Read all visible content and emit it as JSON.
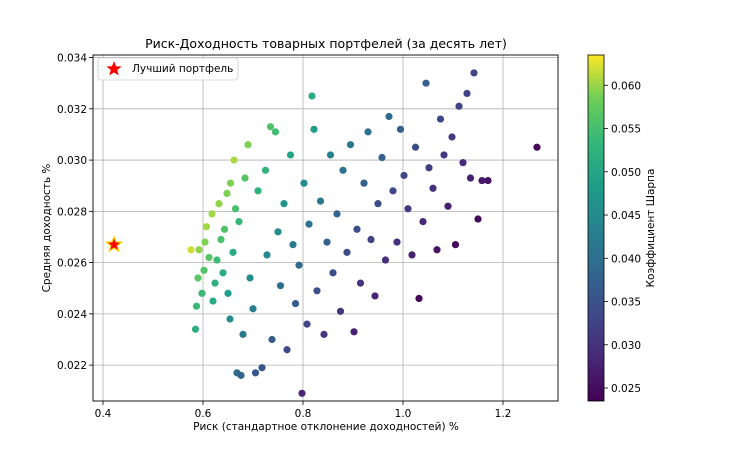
{
  "chart_data": {
    "type": "scatter",
    "title": "Риск-Доходность товарных портфелей (за десять лет)",
    "xlabel": "Риск (стандартное отклонение доходностей) %",
    "ylabel": "Средняя доходность %",
    "xlim": [
      0.38,
      1.31
    ],
    "ylim": [
      0.0206,
      0.0341
    ],
    "xticks": [
      0.4,
      0.6,
      0.8,
      1.0,
      1.2
    ],
    "xtick_labels": [
      "0.4",
      "0.6",
      "0.8",
      "1.0",
      "1.2"
    ],
    "yticks": [
      0.022,
      0.024,
      0.026,
      0.028,
      0.03,
      0.032,
      0.034
    ],
    "ytick_labels": [
      "0.022",
      "0.024",
      "0.026",
      "0.028",
      "0.030",
      "0.032",
      "0.034"
    ],
    "grid": true,
    "colormap": "viridis",
    "colorbar": {
      "label": "Коэффициент Шарпа",
      "range": [
        0.0235,
        0.0635
      ],
      "ticks": [
        0.025,
        0.03,
        0.035,
        0.04,
        0.045,
        0.05,
        0.055,
        0.06
      ],
      "tick_labels": [
        "0.025",
        "0.030",
        "0.035",
        "0.040",
        "0.045",
        "0.050",
        "0.055",
        "0.060"
      ]
    },
    "legend": {
      "position": "top-left",
      "label": "Лучший портфель"
    },
    "best_portfolio": {
      "x": 0.422,
      "y": 0.0267,
      "marker": "star",
      "color": "#ff0000"
    },
    "points": [
      [
        0.576,
        0.0265
      ],
      [
        0.585,
        0.0234
      ],
      [
        0.587,
        0.0243
      ],
      [
        0.59,
        0.0254
      ],
      [
        0.592,
        0.0265
      ],
      [
        0.598,
        0.0248
      ],
      [
        0.602,
        0.0257
      ],
      [
        0.604,
        0.0268
      ],
      [
        0.607,
        0.0274
      ],
      [
        0.612,
        0.0262
      ],
      [
        0.618,
        0.0279
      ],
      [
        0.62,
        0.0245
      ],
      [
        0.624,
        0.0252
      ],
      [
        0.628,
        0.0261
      ],
      [
        0.632,
        0.0283
      ],
      [
        0.636,
        0.0269
      ],
      [
        0.64,
        0.0256
      ],
      [
        0.643,
        0.0273
      ],
      [
        0.648,
        0.0287
      ],
      [
        0.65,
        0.0248
      ],
      [
        0.654,
        0.0238
      ],
      [
        0.655,
        0.0291
      ],
      [
        0.66,
        0.0264
      ],
      [
        0.662,
        0.03
      ],
      [
        0.665,
        0.0281
      ],
      [
        0.668,
        0.0217
      ],
      [
        0.672,
        0.0276
      ],
      [
        0.676,
        0.0216
      ],
      [
        0.68,
        0.0232
      ],
      [
        0.684,
        0.0293
      ],
      [
        0.69,
        0.0306
      ],
      [
        0.694,
        0.0254
      ],
      [
        0.7,
        0.0242
      ],
      [
        0.705,
        0.0217
      ],
      [
        0.71,
        0.0288
      ],
      [
        0.718,
        0.0219
      ],
      [
        0.725,
        0.0296
      ],
      [
        0.728,
        0.0263
      ],
      [
        0.735,
        0.0313
      ],
      [
        0.738,
        0.023
      ],
      [
        0.745,
        0.0311
      ],
      [
        0.75,
        0.0272
      ],
      [
        0.755,
        0.0251
      ],
      [
        0.762,
        0.0283
      ],
      [
        0.768,
        0.0226
      ],
      [
        0.775,
        0.0302
      ],
      [
        0.78,
        0.0267
      ],
      [
        0.785,
        0.0244
      ],
      [
        0.792,
        0.0259
      ],
      [
        0.798,
        0.0209
      ],
      [
        0.802,
        0.0291
      ],
      [
        0.808,
        0.0236
      ],
      [
        0.812,
        0.0275
      ],
      [
        0.818,
        0.0325
      ],
      [
        0.822,
        0.0312
      ],
      [
        0.828,
        0.0249
      ],
      [
        0.835,
        0.0284
      ],
      [
        0.842,
        0.0232
      ],
      [
        0.848,
        0.0268
      ],
      [
        0.855,
        0.0302
      ],
      [
        0.86,
        0.0256
      ],
      [
        0.868,
        0.0279
      ],
      [
        0.875,
        0.0241
      ],
      [
        0.88,
        0.0296
      ],
      [
        0.888,
        0.0264
      ],
      [
        0.895,
        0.0306
      ],
      [
        0.902,
        0.0233
      ],
      [
        0.908,
        0.0273
      ],
      [
        0.915,
        0.0252
      ],
      [
        0.922,
        0.0291
      ],
      [
        0.93,
        0.0311
      ],
      [
        0.936,
        0.0269
      ],
      [
        0.944,
        0.0247
      ],
      [
        0.95,
        0.0283
      ],
      [
        0.958,
        0.0301
      ],
      [
        0.965,
        0.0261
      ],
      [
        0.972,
        0.0317
      ],
      [
        0.98,
        0.0288
      ],
      [
        0.988,
        0.0268
      ],
      [
        0.995,
        0.0312
      ],
      [
        1.002,
        0.0294
      ],
      [
        1.01,
        0.0281
      ],
      [
        1.018,
        0.0263
      ],
      [
        1.025,
        0.0305
      ],
      [
        1.032,
        0.0246
      ],
      [
        1.04,
        0.0276
      ],
      [
        1.046,
        0.033
      ],
      [
        1.052,
        0.0297
      ],
      [
        1.06,
        0.0289
      ],
      [
        1.068,
        0.0265
      ],
      [
        1.075,
        0.0316
      ],
      [
        1.082,
        0.0302
      ],
      [
        1.09,
        0.0282
      ],
      [
        1.098,
        0.0309
      ],
      [
        1.105,
        0.0267
      ],
      [
        1.112,
        0.0321
      ],
      [
        1.12,
        0.0299
      ],
      [
        1.128,
        0.0326
      ],
      [
        1.135,
        0.0293
      ],
      [
        1.142,
        0.0334
      ],
      [
        1.15,
        0.0277
      ],
      [
        1.158,
        0.0292
      ],
      [
        1.17,
        0.0292
      ],
      [
        1.268,
        0.0305
      ]
    ]
  }
}
